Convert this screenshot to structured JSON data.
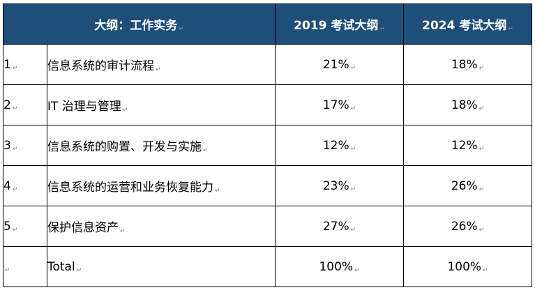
{
  "colors": {
    "header_bg": "#1f4e79",
    "header_text": "#ffffff",
    "border": "#000000"
  },
  "header": {
    "outline": "大纲：工作实务",
    "col_2019": "2019 考试大纲",
    "col_2024": "2024 考试大纲"
  },
  "paragraph_mark": "↵",
  "rows": [
    {
      "num": "1",
      "topic": "信息系统的审计流程",
      "p2019": "21%",
      "p2024": "18%"
    },
    {
      "num": "2",
      "topic": "IT 治理与管理",
      "p2019": "17%",
      "p2024": "18%"
    },
    {
      "num": "3",
      "topic": "信息系统的购置、开发与实施",
      "p2019": "12%",
      "p2024": "12%"
    },
    {
      "num": "4",
      "topic": "信息系统的运营和业务恢复能力",
      "p2019": "23%",
      "p2024": "26%"
    },
    {
      "num": "5",
      "topic": "保护信息资产",
      "p2019": "27%",
      "p2024": "26%"
    },
    {
      "num": "",
      "topic": "Total",
      "p2019": "100%",
      "p2024": "100%"
    }
  ]
}
